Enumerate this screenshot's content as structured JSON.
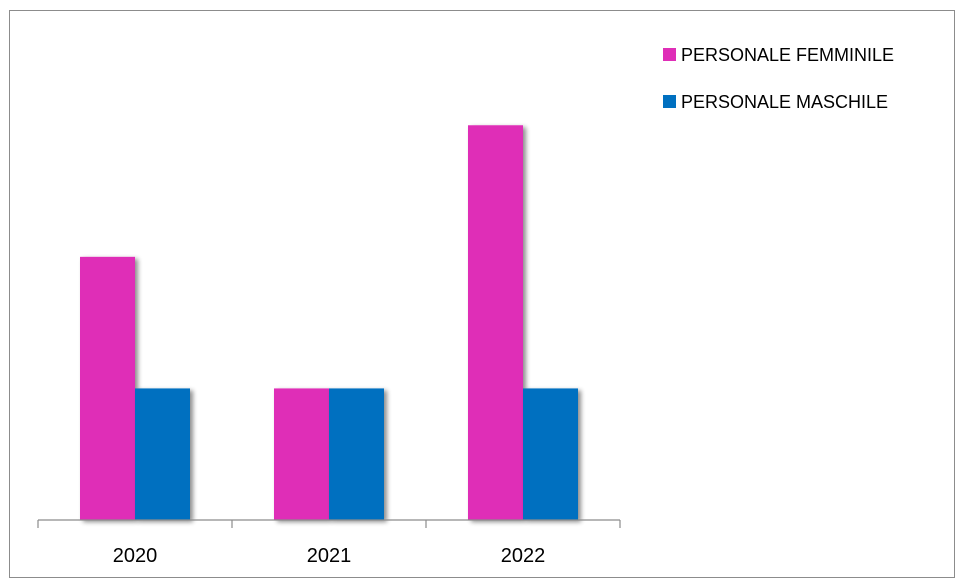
{
  "chart_data": {
    "type": "bar",
    "categories": [
      "2020",
      "2021",
      "2022"
    ],
    "series": [
      {
        "name": "PERSONALE FEMMINILE",
        "values": [
          2,
          1,
          3
        ],
        "color": "#df2eb7"
      },
      {
        "name": "PERSONALE MASCHILE",
        "values": [
          1,
          1,
          1
        ],
        "color": "#0070c0"
      }
    ],
    "ylim": [
      0,
      3.8
    ],
    "grid": false,
    "legend_position": "top-right"
  }
}
